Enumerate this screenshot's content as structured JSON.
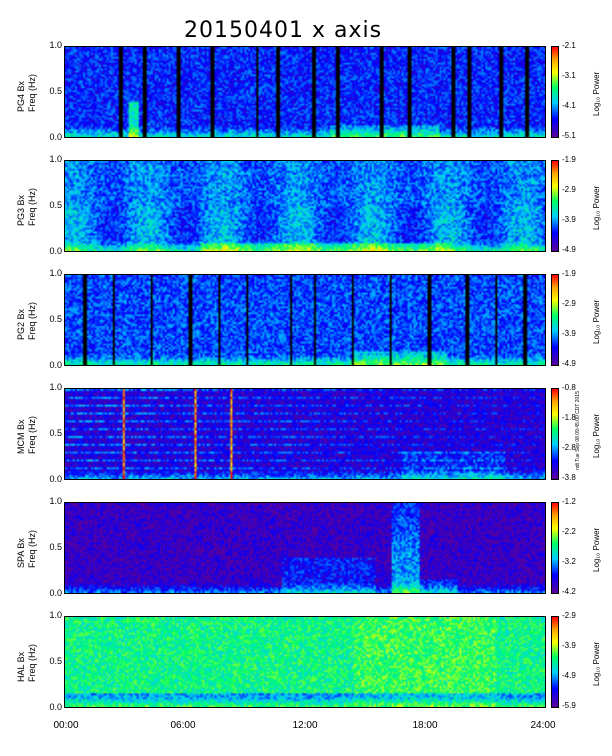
{
  "title": "20150401 x axis",
  "stamp": "ndt Tue Sep 08 09:45:00 CDT 2015",
  "x_ticks": [
    "00:00",
    "06:00",
    "12:00",
    "18:00",
    "24:00"
  ],
  "y_ticks": [
    "1.0",
    "0.5",
    "0.0"
  ],
  "y_axis_label": "Freq (Hz)",
  "colorbar_label": "Log₁₀ Power",
  "chart_data": [
    {
      "type": "heatmap",
      "station": "PG4 Bx",
      "xlim": [
        0,
        24
      ],
      "ylim": [
        0,
        1.0
      ],
      "colorbar_ticks": [
        "-2.1",
        "-3.1",
        "-4.1",
        "-5.1"
      ],
      "clim": [
        -5.1,
        -2.1
      ],
      "features": [
        "vertical data-gap stripes",
        "enhanced power below 0.1 Hz"
      ]
    },
    {
      "type": "heatmap",
      "station": "PG3 Bx",
      "xlim": [
        0,
        24
      ],
      "ylim": [
        0,
        1.0
      ],
      "colorbar_ticks": [
        "-1.9",
        "-2.9",
        "-3.9",
        "-4.9"
      ],
      "clim": [
        -4.9,
        -1.9
      ]
    },
    {
      "type": "heatmap",
      "station": "PG2 Bx",
      "xlim": [
        0,
        24
      ],
      "ylim": [
        0,
        1.0
      ],
      "colorbar_ticks": [
        "-1.9",
        "-2.9",
        "-3.9",
        "-4.9"
      ],
      "clim": [
        -4.9,
        -1.9
      ],
      "features": [
        "vertical data-gap stripes"
      ]
    },
    {
      "type": "heatmap",
      "station": "MCM Bx",
      "xlim": [
        0,
        24
      ],
      "ylim": [
        0,
        1.0
      ],
      "colorbar_ticks": [
        "-0.8",
        "-1.8",
        "-2.8",
        "-3.8"
      ],
      "clim": [
        -3.8,
        -0.8
      ],
      "features": [
        "horizontal harmonic lines",
        "broadband spikes near 02:45, 06:30, 08:20"
      ]
    },
    {
      "type": "heatmap",
      "station": "SPA Bx",
      "xlim": [
        0,
        24
      ],
      "ylim": [
        0,
        1.0
      ],
      "colorbar_ticks": [
        "-1.2",
        "-2.2",
        "-3.2",
        "-4.2"
      ],
      "clim": [
        -4.2,
        -1.2
      ],
      "features": [
        "emission burst near 16:30-18:00"
      ]
    },
    {
      "type": "heatmap",
      "station": "HAL Bx",
      "xlim": [
        0,
        24
      ],
      "ylim": [
        0,
        1.0
      ],
      "colorbar_ticks": [
        "-2.9",
        "-3.9",
        "-4.9",
        "-5.9"
      ],
      "clim": [
        -5.9,
        -2.9
      ],
      "features": [
        "broadly elevated power"
      ]
    }
  ]
}
